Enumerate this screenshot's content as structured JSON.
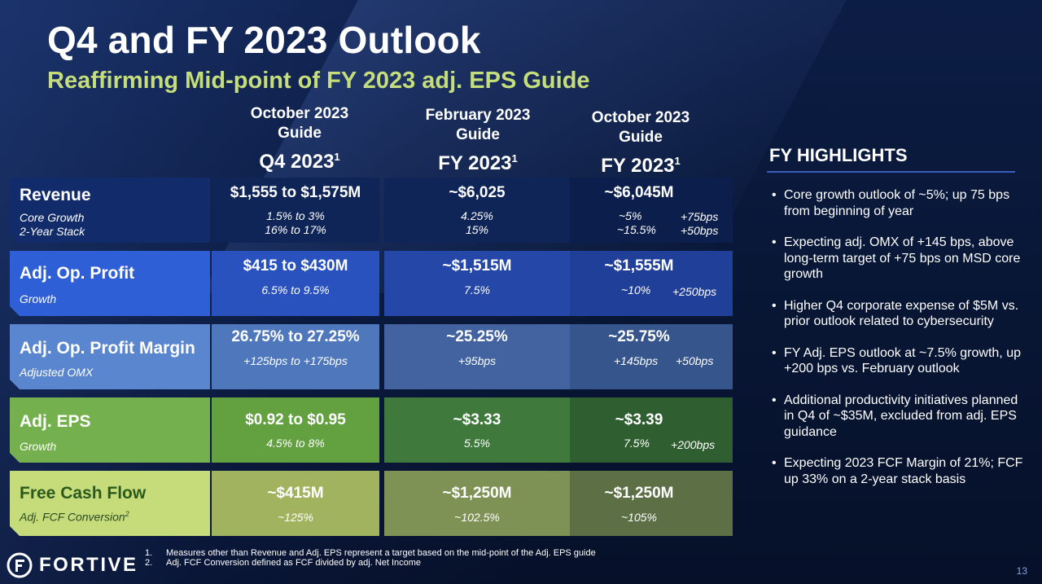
{
  "title": "Q4 and FY 2023 Outlook",
  "subtitle": "Reaffirming Mid-point of FY 2023 adj. EPS Guide",
  "columns": [
    {
      "l1": "October 2023",
      "l2": "Guide",
      "big": "Q4 2023",
      "sup": "1"
    },
    {
      "l1": "February 2023",
      "l2": "Guide",
      "big": "FY 2023",
      "sup": "1"
    },
    {
      "l1": "October 2023",
      "l2": "Guide",
      "big": "FY 2023",
      "sup": "1"
    }
  ],
  "rows": {
    "revenue": {
      "name": "Revenue",
      "sub1": "Core Growth",
      "sub2": "2-Year Stack",
      "q4": {
        "v": "$1,555 to $1,575M",
        "s1": "1.5% to 3%",
        "s2": "16% to 17%"
      },
      "feb": {
        "v": "~$6,025",
        "s1": "4.25%",
        "s2": "15%"
      },
      "oct": {
        "v": "~$6,045M",
        "s1": "~5%",
        "s2": "~15.5%",
        "d1": "+75bps",
        "d2": "+50bps"
      }
    },
    "opprofit": {
      "name": "Adj. Op. Profit",
      "sub1": "Growth",
      "q4": {
        "v": "$415 to $430M",
        "s1": "6.5% to 9.5%"
      },
      "feb": {
        "v": "~$1,515M",
        "s1": "7.5%"
      },
      "oct": {
        "v": "~$1,555M",
        "s1": "~10%",
        "d1": "+250bps"
      }
    },
    "margin": {
      "name": "Adj. Op. Profit Margin",
      "sub1": "Adjusted OMX",
      "q4": {
        "v": "26.75% to 27.25%",
        "s1": "+125bps to +175bps"
      },
      "feb": {
        "v": "~25.25%",
        "s1": "+95bps"
      },
      "oct": {
        "v": "~25.75%",
        "s1": "+145bps",
        "d1": "+50bps"
      }
    },
    "eps": {
      "name": "Adj. EPS",
      "sub1": "Growth",
      "q4": {
        "v": "$0.92 to $0.95",
        "s1": "4.5% to 8%"
      },
      "feb": {
        "v": "~$3.33",
        "s1": "5.5%"
      },
      "oct": {
        "v": "~$3.39",
        "s1": "7.5%",
        "d1": "+200bps"
      }
    },
    "fcf": {
      "name": "Free Cash Flow",
      "sub1": "Adj. FCF Conversion",
      "sub1_sup": "2",
      "q4": {
        "v": "~$415M",
        "s1": "~125%"
      },
      "feb": {
        "v": "~$1,250M",
        "s1": "~102.5%"
      },
      "oct": {
        "v": "~$1,250M",
        "s1": "~105%"
      }
    }
  },
  "highlights": {
    "title": "FY HIGHLIGHTS",
    "items": [
      "Core growth outlook of ~5%; up 75 bps from beginning of year",
      "Expecting adj. OMX of +145 bps, above long-term target of +75 bps on MSD core growth",
      "Higher Q4 corporate expense of $5M vs. prior outlook related to cybersecurity",
      "FY Adj. EPS outlook at ~7.5% growth, up +200 bps vs. February outlook",
      "Additional productivity initiatives planned in Q4 of ~$35M, excluded from adj. EPS guidance",
      "Expecting 2023 FCF Margin of 21%; FCF up 33% on a 2-year stack basis"
    ]
  },
  "footnotes": [
    {
      "n": "1.",
      "text": "Measures other than Revenue and Adj. EPS represent a target based on the mid-point of the Adj. EPS guide"
    },
    {
      "n": "2.",
      "text": "Adj. FCF Conversion defined as FCF divided by adj. Net Income"
    }
  ],
  "logo_text": "FORTIVE",
  "page_number": "13",
  "colors": {
    "accent_green": "#c5dd7a",
    "revenue": "#102a66",
    "opprofit": "#2f5fd6",
    "margin": "#5a86cf",
    "eps": "#74b14e",
    "fcf": "#c6dc7a"
  }
}
